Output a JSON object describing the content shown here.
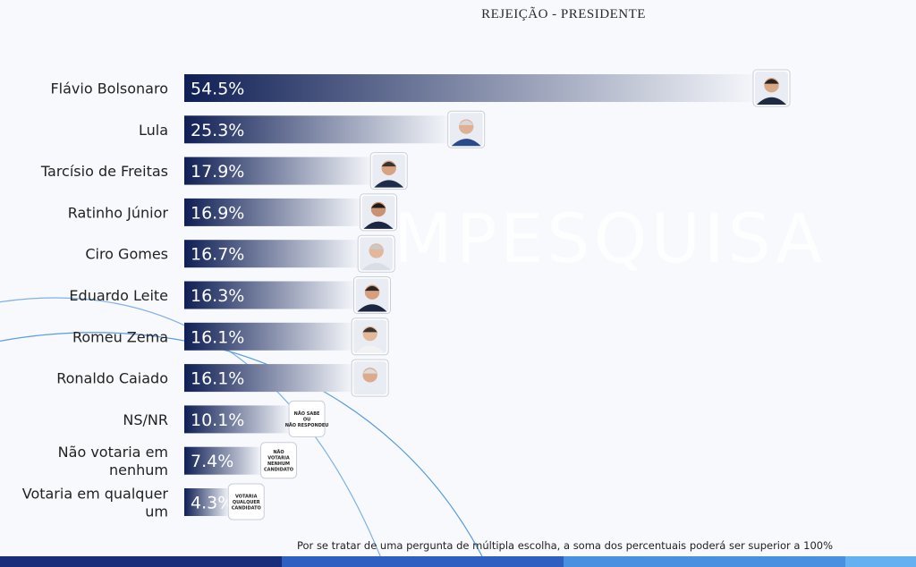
{
  "chart_data": {
    "type": "bar",
    "orientation": "horizontal",
    "title": "REJEIÇÃO - PRESIDENTE",
    "categories": [
      "Flávio Bolsonaro",
      "Lula",
      "Tarcísio de Freitas",
      "Ratinho Júnior",
      "Ciro Gomes",
      "Eduardo Leite",
      "Romeu Zema",
      "Ronaldo Caiado",
      "NS/NR",
      "Não votaria em nenhum",
      "Votaria em qualquer um"
    ],
    "values": [
      54.5,
      25.3,
      17.9,
      16.9,
      16.7,
      16.3,
      16.1,
      16.1,
      10.1,
      7.4,
      4.3
    ],
    "value_labels": [
      "54.5%",
      "25.3%",
      "17.9%",
      "16.9%",
      "16.7%",
      "16.3%",
      "16.1%",
      "16.1%",
      "10.1%",
      "7.4%",
      "4.3%"
    ],
    "badge_texts": [
      null,
      null,
      null,
      null,
      null,
      null,
      null,
      null,
      [
        "NÃO SABE",
        "OU",
        "NÃO RESPONDEU"
      ],
      [
        "NÃO",
        "VOTARIA",
        "NENHUM",
        "CANDIDATO"
      ],
      [
        "VOTARIA",
        "QUALQUER",
        "CANDIDATO"
      ]
    ],
    "xlim": [
      0,
      57.5
    ],
    "grid": false,
    "legend": "none",
    "bar_colors": {
      "start": "#0f1f55",
      "end": "#f4f6fa"
    }
  },
  "watermark": "MPESQUISA",
  "footnote": "Por se tratar de uma pergunta de múltipla escolha, a soma dos percentuais poderá ser superior a 100%",
  "bottom_bar_colors": [
    "#1a2d7a",
    "#2f5fc0",
    "#4a90e0",
    "#64b0f0"
  ]
}
